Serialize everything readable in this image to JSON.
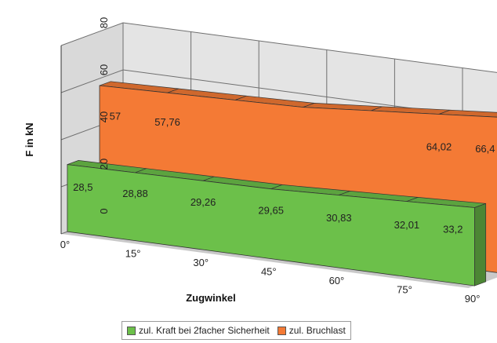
{
  "chart_data": {
    "type": "bar",
    "variant": "3d-area",
    "categories": [
      "0°",
      "15°",
      "30°",
      "45°",
      "60°",
      "75°",
      "90°"
    ],
    "series": [
      {
        "name": "zul. Kraft bei 2facher Sicherheit",
        "color": "#6cc04a",
        "values": [
          28.5,
          28.88,
          29.26,
          29.65,
          30.83,
          32.01,
          33.2
        ],
        "labels": [
          "28,5",
          "28,88",
          "29,26",
          "29,65",
          "30,83",
          "32,01",
          "33,2"
        ]
      },
      {
        "name": "zul. Bruchlast",
        "color": "#f47a35",
        "values": [
          57,
          57.76,
          58.52,
          59.3,
          61.66,
          64.02,
          66.4
        ],
        "labels": [
          "57",
          "57,76",
          "",
          "",
          "",
          "64,02",
          "66,4"
        ]
      }
    ],
    "ylabel": "F in kN",
    "xlabel": "Zugwinkel",
    "ylim": [
      0,
      80
    ],
    "yticks": [
      "0",
      "20",
      "40",
      "60",
      "80"
    ],
    "grid": true,
    "legend": "bottom"
  }
}
